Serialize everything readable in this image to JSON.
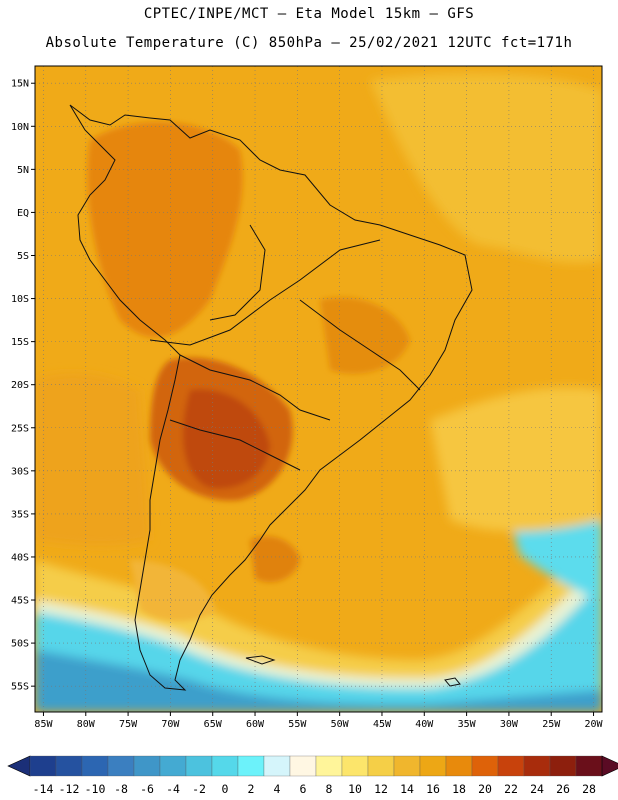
{
  "header": {
    "line1": "CPTEC/INPE/MCT –  Eta Model 15km – GFS",
    "line2": "Absolute Temperature (C) 850hPa – 25/02/2021 12UTC fct=171h"
  },
  "map": {
    "lon_range": [
      -86,
      -19
    ],
    "lat_range": [
      -58,
      17
    ],
    "lat_ticks": [
      {
        "value": 15,
        "label": "15N"
      },
      {
        "value": 10,
        "label": "10N"
      },
      {
        "value": 5,
        "label": "5N"
      },
      {
        "value": 0,
        "label": "EQ"
      },
      {
        "value": -5,
        "label": "5S"
      },
      {
        "value": -10,
        "label": "10S"
      },
      {
        "value": -15,
        "label": "15S"
      },
      {
        "value": -20,
        "label": "20S"
      },
      {
        "value": -25,
        "label": "25S"
      },
      {
        "value": -30,
        "label": "30S"
      },
      {
        "value": -35,
        "label": "35S"
      },
      {
        "value": -40,
        "label": "40S"
      },
      {
        "value": -45,
        "label": "45S"
      },
      {
        "value": -50,
        "label": "50S"
      },
      {
        "value": -55,
        "label": "55S"
      }
    ],
    "lon_ticks": [
      {
        "value": -85,
        "label": "85W"
      },
      {
        "value": -80,
        "label": "80W"
      },
      {
        "value": -75,
        "label": "75W"
      },
      {
        "value": -70,
        "label": "70W"
      },
      {
        "value": -65,
        "label": "65W"
      },
      {
        "value": -60,
        "label": "60W"
      },
      {
        "value": -55,
        "label": "55W"
      },
      {
        "value": -50,
        "label": "50W"
      },
      {
        "value": -45,
        "label": "45W"
      },
      {
        "value": -40,
        "label": "40W"
      },
      {
        "value": -35,
        "label": "35W"
      },
      {
        "value": -30,
        "label": "30W"
      },
      {
        "value": -25,
        "label": "25W"
      },
      {
        "value": -20,
        "label": "20W"
      }
    ]
  },
  "colorbar": {
    "labels": [
      "-14",
      "-12",
      "-10",
      "-8",
      "-6",
      "-4",
      "-2",
      "0",
      "2",
      "4",
      "6",
      "8",
      "10",
      "12",
      "14",
      "16",
      "18",
      "20",
      "22",
      "24",
      "26",
      "28"
    ],
    "colors": [
      "#1e3f8e",
      "#2552a0",
      "#2c66b2",
      "#3b7fc0",
      "#3f96c8",
      "#44aad2",
      "#4cc2de",
      "#55d8ea",
      "#6cf2fa",
      "#d5f5fb",
      "#fff7e3",
      "#fff59a",
      "#fce56b",
      "#f5cf47",
      "#f0b62d",
      "#eda715",
      "#e88a0c",
      "#de6209",
      "#c8420c",
      "#a82c0c",
      "#8d1f0d",
      "#6a0f1a"
    ],
    "low_color": "#1b2f78",
    "high_color": "#5a0b24"
  },
  "palette": {
    "background_field": "#f0aa18",
    "warm_core": "#c4500f",
    "hot_core": "#a63a0d",
    "pale_gold": "#f6c63c",
    "cold_cyan": "#4fd6ea",
    "cold_blue": "#3b95c6"
  }
}
